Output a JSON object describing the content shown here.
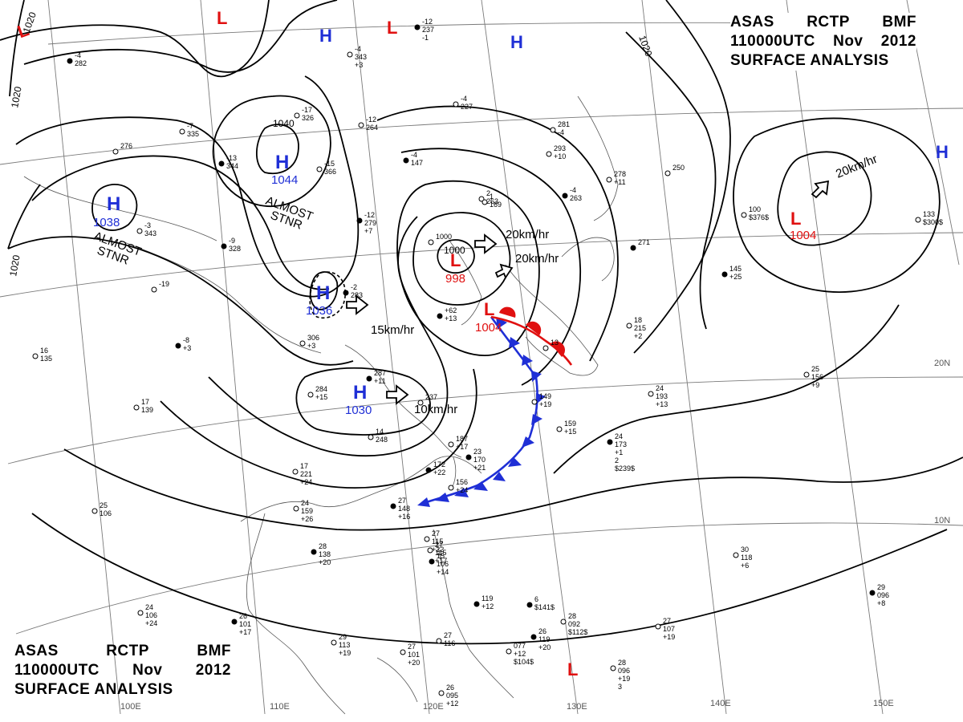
{
  "header": {
    "agency_line": [
      "ASAS",
      "RCTP",
      "BMF"
    ],
    "time_line": [
      "110000UTC",
      "Nov",
      "2012"
    ],
    "product": "SURFACE ANALYSIS"
  },
  "colors": {
    "high": "#1f2fd6",
    "low": "#e01010",
    "cold_front": "#1f2fd6",
    "warm_front": "#e01010",
    "isobar": "#000000",
    "grid": "#777777"
  },
  "pressure_centers": [
    {
      "id": "h-1038",
      "type": "high",
      "symbol": "H",
      "value": "1038"
    },
    {
      "id": "h-1044",
      "type": "high",
      "symbol": "H",
      "value": "1044"
    },
    {
      "id": "h-1036",
      "type": "high",
      "symbol": "H",
      "value": "1036"
    },
    {
      "id": "h-1030",
      "type": "high",
      "symbol": "H",
      "value": "1030"
    },
    {
      "id": "h-top-mid",
      "type": "high",
      "symbol": "H",
      "value": ""
    },
    {
      "id": "h-top-right",
      "type": "high",
      "symbol": "H",
      "value": ""
    },
    {
      "id": "h-edge-right",
      "type": "high",
      "symbol": "H",
      "value": ""
    },
    {
      "id": "l-998",
      "type": "low",
      "symbol": "L",
      "value": "998"
    },
    {
      "id": "l-1004-japan",
      "type": "low",
      "symbol": "L",
      "value": "1004"
    },
    {
      "id": "l-1004-pacific",
      "type": "low",
      "symbol": "L",
      "value": "1004"
    },
    {
      "id": "l-top-left",
      "type": "low",
      "symbol": "L",
      "value": ""
    },
    {
      "id": "l-top-a",
      "type": "low",
      "symbol": "L",
      "value": ""
    },
    {
      "id": "l-top-b",
      "type": "low",
      "symbol": "L",
      "value": ""
    },
    {
      "id": "l-south",
      "type": "low",
      "symbol": "L",
      "value": ""
    }
  ],
  "stationary_notes": [
    {
      "id": "stnr-1044",
      "lines": [
        "ALMOST",
        "STNR"
      ]
    },
    {
      "id": "stnr-1038",
      "lines": [
        "ALMOST",
        "STNR"
      ]
    }
  ],
  "movements": [
    {
      "id": "mv-low-998",
      "text": "20km/hr"
    },
    {
      "id": "mv-low-1004",
      "text": "20km/hr"
    },
    {
      "id": "mv-pacific",
      "text": "20km/hr"
    },
    {
      "id": "mv-1036",
      "text": "15km/hr"
    },
    {
      "id": "mv-1030",
      "text": "10km/hr"
    }
  ],
  "isobar_labels": [
    {
      "id": "iso-1020-topleft",
      "text": "1020"
    },
    {
      "id": "iso-1020-left",
      "text": "1020"
    },
    {
      "id": "iso-1020-leftlow",
      "text": "1020"
    },
    {
      "id": "iso-1020-top",
      "text": "1020"
    },
    {
      "id": "iso-1040",
      "text": "1040"
    },
    {
      "id": "iso-1000",
      "text": "1000"
    }
  ],
  "longitude_labels": [
    "100E",
    "110E",
    "120E",
    "130E",
    "140E",
    "150E"
  ],
  "latitude_labels": [
    "20N",
    "10N"
  ],
  "station_readings": [
    {
      "id": "s1",
      "lines": [
        "-4",
        "282"
      ]
    },
    {
      "id": "s2",
      "lines": [
        "-7",
        "335"
      ]
    },
    {
      "id": "s3",
      "lines": [
        "276"
      ]
    },
    {
      "id": "s4",
      "lines": [
        "-13",
        "344"
      ]
    },
    {
      "id": "s5",
      "lines": [
        "-15",
        "366"
      ]
    },
    {
      "id": "s6",
      "lines": [
        "-17",
        "326"
      ]
    },
    {
      "id": "s7",
      "lines": [
        "-9",
        "328"
      ]
    },
    {
      "id": "s8",
      "lines": [
        "-3",
        "343"
      ]
    },
    {
      "id": "s9",
      "lines": [
        "-19"
      ]
    },
    {
      "id": "s10",
      "lines": [
        "-12",
        "279",
        "+7"
      ]
    },
    {
      "id": "s11",
      "lines": [
        "-12",
        "264"
      ]
    },
    {
      "id": "s12",
      "lines": [
        "-4",
        "227"
      ]
    },
    {
      "id": "s13",
      "lines": [
        "-12",
        "237",
        "-1"
      ]
    },
    {
      "id": "s14",
      "lines": [
        "-4",
        "343",
        "+3"
      ]
    },
    {
      "id": "s15",
      "lines": [
        "2",
        "263"
      ]
    },
    {
      "id": "s16",
      "lines": [
        "-2",
        "283"
      ]
    },
    {
      "id": "s17",
      "lines": [
        "306",
        "+3"
      ]
    },
    {
      "id": "s18",
      "lines": [
        "16",
        "135"
      ]
    },
    {
      "id": "s19",
      "lines": [
        "-8",
        "+3"
      ]
    },
    {
      "id": "s20",
      "lines": [
        "17",
        "139"
      ]
    },
    {
      "id": "s21",
      "lines": [
        "284",
        "+15"
      ]
    },
    {
      "id": "s22",
      "lines": [
        "287",
        "+11"
      ]
    },
    {
      "id": "s23",
      "lines": [
        "14",
        "248"
      ]
    },
    {
      "id": "s24",
      "lines": [
        "237"
      ]
    },
    {
      "id": "s25",
      "lines": [
        "-4",
        "147"
      ]
    },
    {
      "id": "s26",
      "lines": [
        "1",
        "169"
      ]
    },
    {
      "id": "s27",
      "lines": [
        "1000"
      ]
    },
    {
      "id": "s28",
      "lines": [
        "+62",
        "+13"
      ]
    },
    {
      "id": "s29",
      "lines": [
        "281",
        "-4"
      ]
    },
    {
      "id": "s30",
      "lines": [
        "293",
        "+10"
      ]
    },
    {
      "id": "s31",
      "lines": [
        "-4",
        "263"
      ]
    },
    {
      "id": "s32",
      "lines": [
        "278",
        "+11"
      ]
    },
    {
      "id": "s33",
      "lines": [
        "250"
      ]
    },
    {
      "id": "s34",
      "lines": [
        "271"
      ]
    },
    {
      "id": "s35",
      "lines": [
        "18",
        "215",
        "+2"
      ]
    },
    {
      "id": "s36",
      "lines": [
        "100",
        "$376$"
      ]
    },
    {
      "id": "s37",
      "lines": [
        "145",
        "+25"
      ]
    },
    {
      "id": "s38",
      "lines": [
        "133",
        "$300$"
      ]
    },
    {
      "id": "s39",
      "lines": [
        "187",
        "+17"
      ]
    },
    {
      "id": "s40",
      "lines": [
        "23",
        "170",
        "+21"
      ]
    },
    {
      "id": "s41",
      "lines": [
        "149",
        "+19"
      ]
    },
    {
      "id": "s42",
      "lines": [
        "159",
        "+15"
      ]
    },
    {
      "id": "s43",
      "lines": [
        "24",
        "173",
        "+1",
        "2",
        "$239$"
      ]
    },
    {
      "id": "s44",
      "lines": [
        "24",
        "193",
        "+13"
      ]
    },
    {
      "id": "s45",
      "lines": [
        "25",
        "156",
        "+9"
      ]
    },
    {
      "id": "s46",
      "lines": [
        "172",
        "+22"
      ]
    },
    {
      "id": "s47",
      "lines": [
        "156",
        "+24"
      ]
    },
    {
      "id": "s48",
      "lines": [
        "17",
        "221",
        "+24"
      ]
    },
    {
      "id": "s49",
      "lines": [
        "27",
        "148",
        "+16"
      ]
    },
    {
      "id": "s50",
      "lines": [
        "24",
        "159",
        "+26"
      ]
    },
    {
      "id": "s51",
      "lines": [
        "25",
        "106"
      ]
    },
    {
      "id": "s52",
      "lines": [
        "28",
        "138",
        "+20"
      ]
    },
    {
      "id": "s53",
      "lines": [
        "27",
        "115",
        "+22"
      ]
    },
    {
      "id": "s54",
      "lines": [
        "27",
        "115",
        "+17"
      ]
    },
    {
      "id": "s55",
      "lines": [
        "15",
        "106",
        "+14"
      ]
    },
    {
      "id": "s56",
      "lines": [
        "30",
        "118",
        "+6"
      ]
    },
    {
      "id": "s57",
      "lines": [
        "24",
        "106",
        "+24"
      ]
    },
    {
      "id": "s58",
      "lines": [
        "26",
        "101",
        "+17"
      ]
    },
    {
      "id": "s59",
      "lines": [
        "29",
        "113",
        "+19"
      ]
    },
    {
      "id": "s60",
      "lines": [
        "27",
        "101",
        "+20"
      ]
    },
    {
      "id": "s61",
      "lines": [
        "119",
        "+12"
      ]
    },
    {
      "id": "s62",
      "lines": [
        "27",
        "116"
      ]
    },
    {
      "id": "s63",
      "lines": [
        "077",
        "+12",
        "$104$"
      ]
    },
    {
      "id": "s64",
      "lines": [
        "26",
        "119",
        "+20"
      ]
    },
    {
      "id": "s65",
      "lines": [
        "28",
        "092",
        "$112$"
      ]
    },
    {
      "id": "s66",
      "lines": [
        "27",
        "107",
        "+19"
      ]
    },
    {
      "id": "s67",
      "lines": [
        "29",
        "096",
        "+8"
      ]
    },
    {
      "id": "s68",
      "lines": [
        "28",
        "096",
        "+19",
        "3"
      ]
    },
    {
      "id": "s69",
      "lines": [
        "26",
        "095",
        "+12"
      ]
    },
    {
      "id": "s70",
      "lines": [
        "6",
        "$141$"
      ]
    },
    {
      "id": "s71",
      "lines": [
        "13"
      ]
    }
  ]
}
